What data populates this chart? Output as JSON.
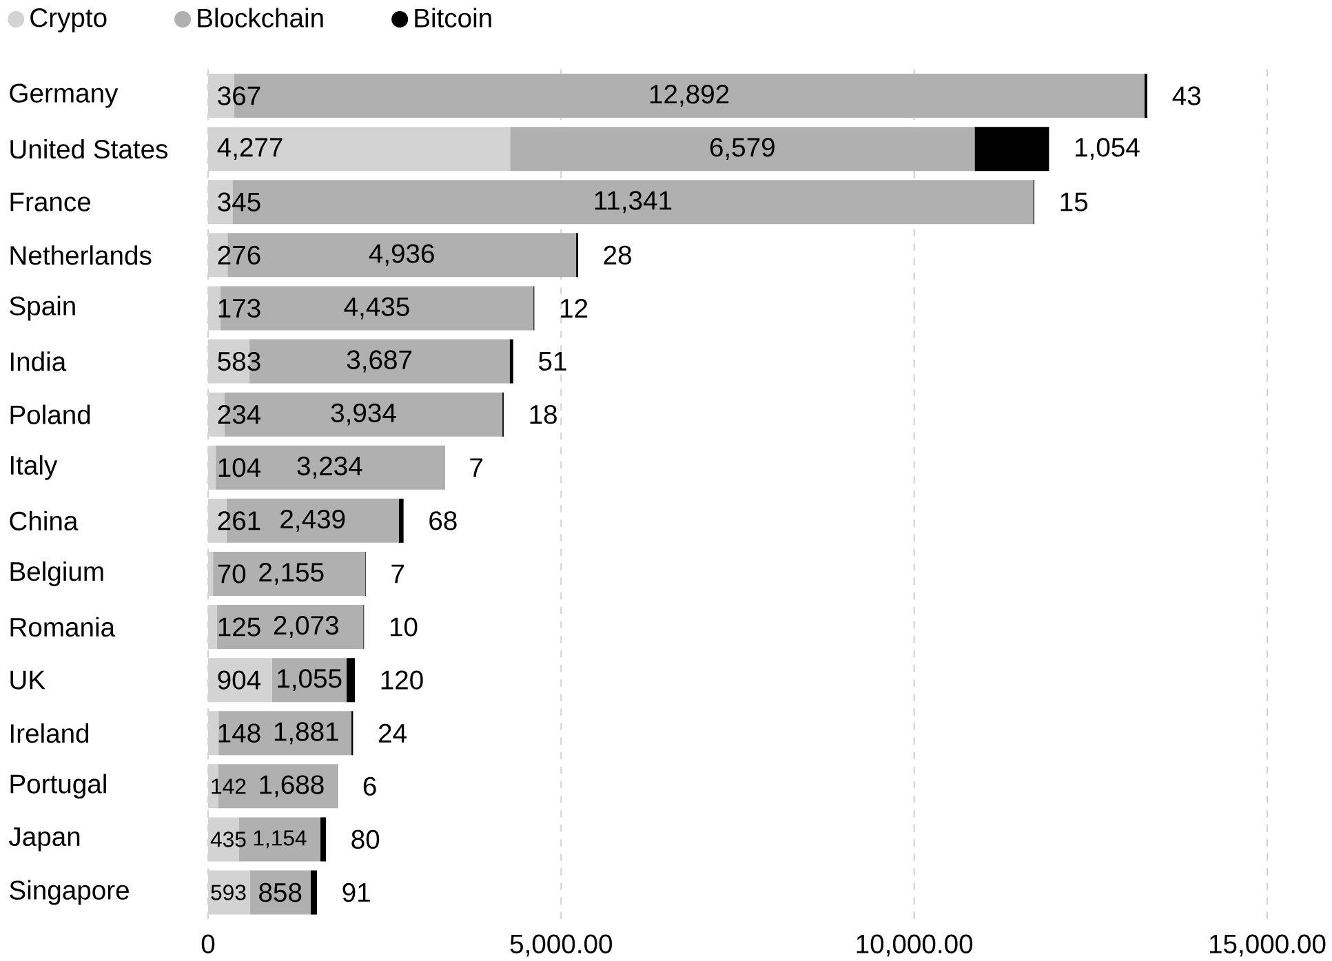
{
  "chart_data": {
    "type": "bar",
    "orientation": "horizontal",
    "stacked": true,
    "grid": "x",
    "legend": "top left",
    "categories": [
      "Germany",
      "United States",
      "France",
      "Netherlands",
      "Spain",
      "India",
      "Poland",
      "Italy",
      "China",
      "Belgium",
      "Romania",
      "UK",
      "Ireland",
      "Portugal",
      "Japan",
      "Singapore"
    ],
    "xlim": [
      0,
      15000
    ],
    "xticks": [
      0,
      {
        "value": 5000,
        "label": "5,000.00"
      },
      {
        "value": 10000,
        "label": "10,000.00"
      },
      {
        "value": 15000,
        "label": "15,000.00"
      }
    ],
    "series": [
      {
        "name": "Crypto",
        "color": "#d3d3d3",
        "values": [
          367,
          4277,
          345,
          276,
          173,
          583,
          234,
          104,
          261,
          70,
          125,
          904,
          148,
          142,
          435,
          593
        ],
        "value_labels": [
          "367",
          "4,277",
          "345",
          "276",
          "173",
          "583",
          "234",
          "104",
          "261",
          "70",
          "125",
          "904",
          "148",
          "142",
          "435",
          "593"
        ]
      },
      {
        "name": "Blockchain",
        "color": "#b0b0b0",
        "values": [
          12892,
          6579,
          11341,
          4936,
          4435,
          3687,
          3934,
          3234,
          2439,
          2155,
          2073,
          1055,
          1881,
          1688,
          1154,
          858
        ],
        "value_labels": [
          "12,892",
          "6,579",
          "11,341",
          "4,936",
          "4,435",
          "3,687",
          "3,934",
          "3,234",
          "2,439",
          "2,155",
          "2,073",
          "1,055",
          "1,881",
          "1,688",
          "1,154",
          "858"
        ]
      },
      {
        "name": "Bitcoin",
        "color": "#000000",
        "values": [
          43,
          1054,
          15,
          28,
          12,
          51,
          18,
          7,
          68,
          7,
          10,
          120,
          24,
          6,
          80,
          91
        ],
        "value_labels": [
          "43",
          "1,054",
          "15",
          "28",
          "12",
          "51",
          "18",
          "7",
          "68",
          "7",
          "10",
          "120",
          "24",
          "6",
          "80",
          "91"
        ]
      }
    ]
  }
}
